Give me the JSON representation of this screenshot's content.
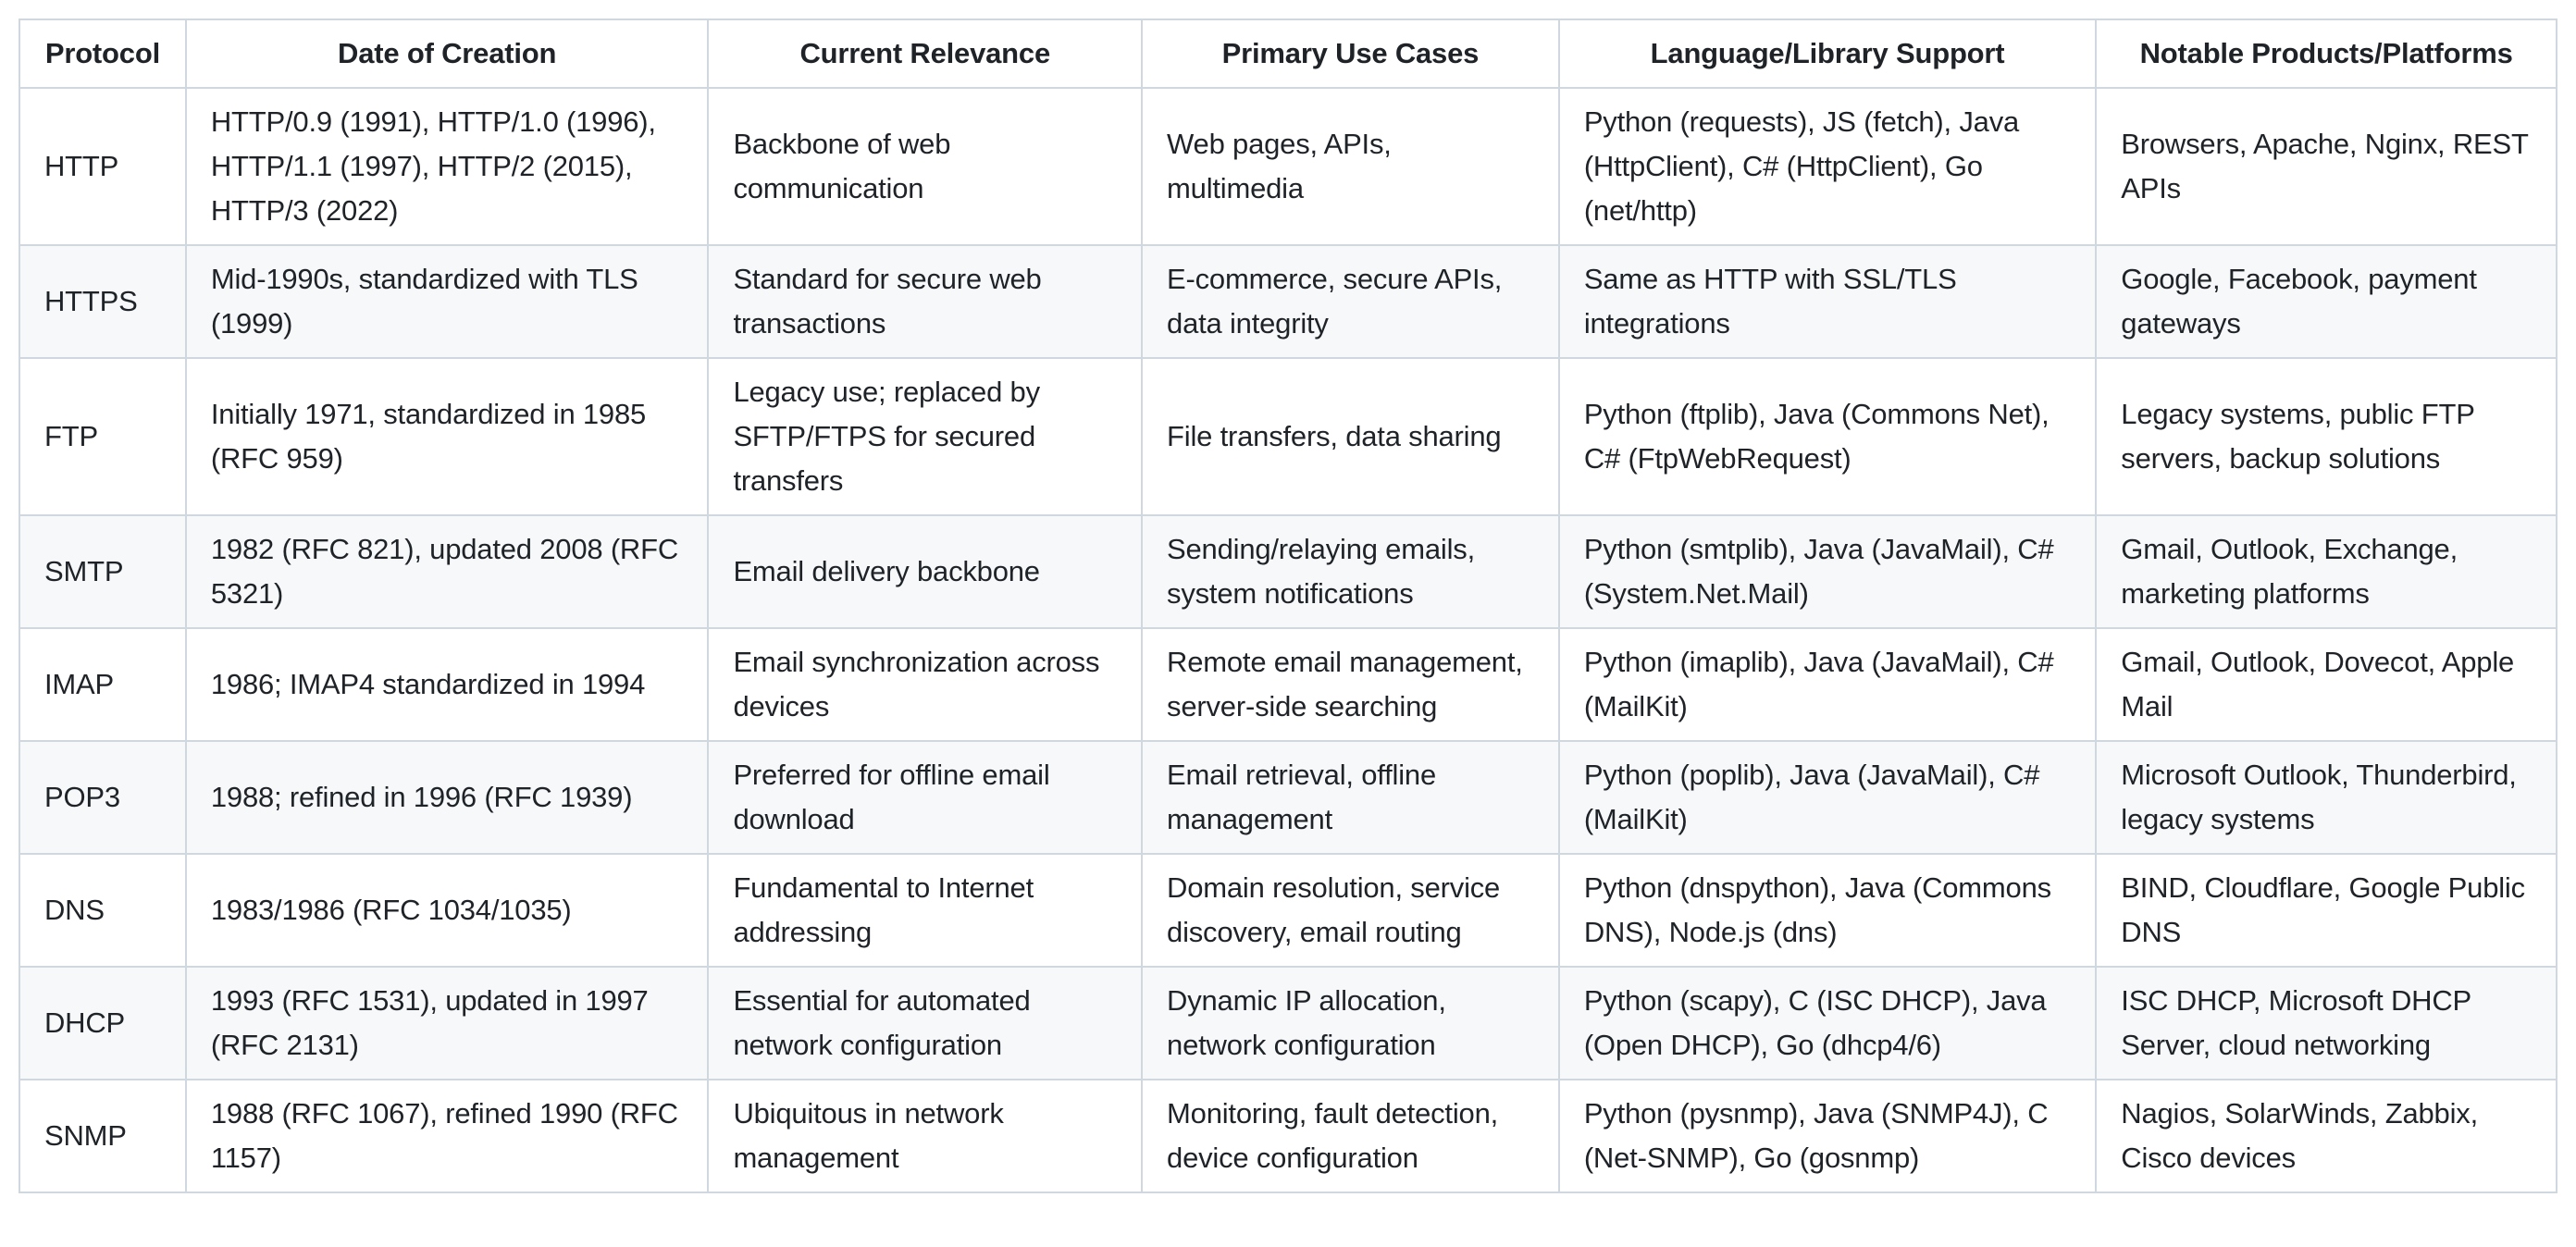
{
  "colors": {
    "row_stripe": "#f6f8fa",
    "border": "#d0d7de",
    "text": "#1f2328",
    "page_background": "#ffffff"
  },
  "table": {
    "columns": [
      "Protocol",
      "Date of Creation",
      "Current Relevance",
      "Primary Use Cases",
      "Language/Library Support",
      "Notable Products/Platforms"
    ],
    "rows": [
      [
        "HTTP",
        "HTTP/0.9 (1991), HTTP/1.0 (1996), HTTP/1.1 (1997), HTTP/2 (2015), HTTP/3 (2022)",
        "Backbone of web communication",
        "Web pages, APIs, multimedia",
        "Python (requests), JS (fetch), Java (HttpClient), C# (HttpClient), Go (net/http)",
        "Browsers, Apache, Nginx, REST APIs"
      ],
      [
        "HTTPS",
        "Mid-1990s, standardized with TLS (1999)",
        "Standard for secure web transactions",
        "E-commerce, secure APIs, data integrity",
        "Same as HTTP with SSL/TLS integrations",
        "Google, Facebook, payment gateways"
      ],
      [
        "FTP",
        "Initially 1971, standardized in 1985 (RFC 959)",
        "Legacy use; replaced by SFTP/FTPS for secured transfers",
        "File transfers, data sharing",
        "Python (ftplib), Java (Commons Net), C# (FtpWebRequest)",
        "Legacy systems, public FTP servers, backup solutions"
      ],
      [
        "SMTP",
        "1982 (RFC 821), updated 2008 (RFC 5321)",
        "Email delivery backbone",
        "Sending/relaying emails, system notifications",
        "Python (smtplib), Java (JavaMail), C# (System.Net.Mail)",
        "Gmail, Outlook, Exchange, marketing platforms"
      ],
      [
        "IMAP",
        "1986; IMAP4 standardized in 1994",
        "Email synchronization across devices",
        "Remote email management, server-side searching",
        "Python (imaplib), Java (JavaMail), C# (MailKit)",
        "Gmail, Outlook, Dovecot, Apple Mail"
      ],
      [
        "POP3",
        "1988; refined in 1996 (RFC 1939)",
        "Preferred for offline email download",
        "Email retrieval, offline management",
        "Python (poplib), Java (JavaMail), C# (MailKit)",
        "Microsoft Outlook, Thunderbird, legacy systems"
      ],
      [
        "DNS",
        "1983/1986 (RFC 1034/1035)",
        "Fundamental to Internet addressing",
        "Domain resolution, service discovery, email routing",
        "Python (dnspython), Java (Commons DNS), Node.js (dns)",
        "BIND, Cloudflare, Google Public DNS"
      ],
      [
        "DHCP",
        "1993 (RFC 1531), updated in 1997 (RFC 2131)",
        "Essential for automated network configuration",
        "Dynamic IP allocation, network configuration",
        "Python (scapy), C (ISC DHCP), Java (Open DHCP), Go (dhcp4/6)",
        "ISC DHCP, Microsoft DHCP Server, cloud networking"
      ],
      [
        "SNMP",
        "1988 (RFC 1067), refined 1990 (RFC 1157)",
        "Ubiquitous in network management",
        "Monitoring, fault detection, device configuration",
        "Python (pysnmp), Java (SNMP4J), C (Net-SNMP), Go (gosnmp)",
        "Nagios, SolarWinds, Zabbix, Cisco devices"
      ]
    ]
  }
}
